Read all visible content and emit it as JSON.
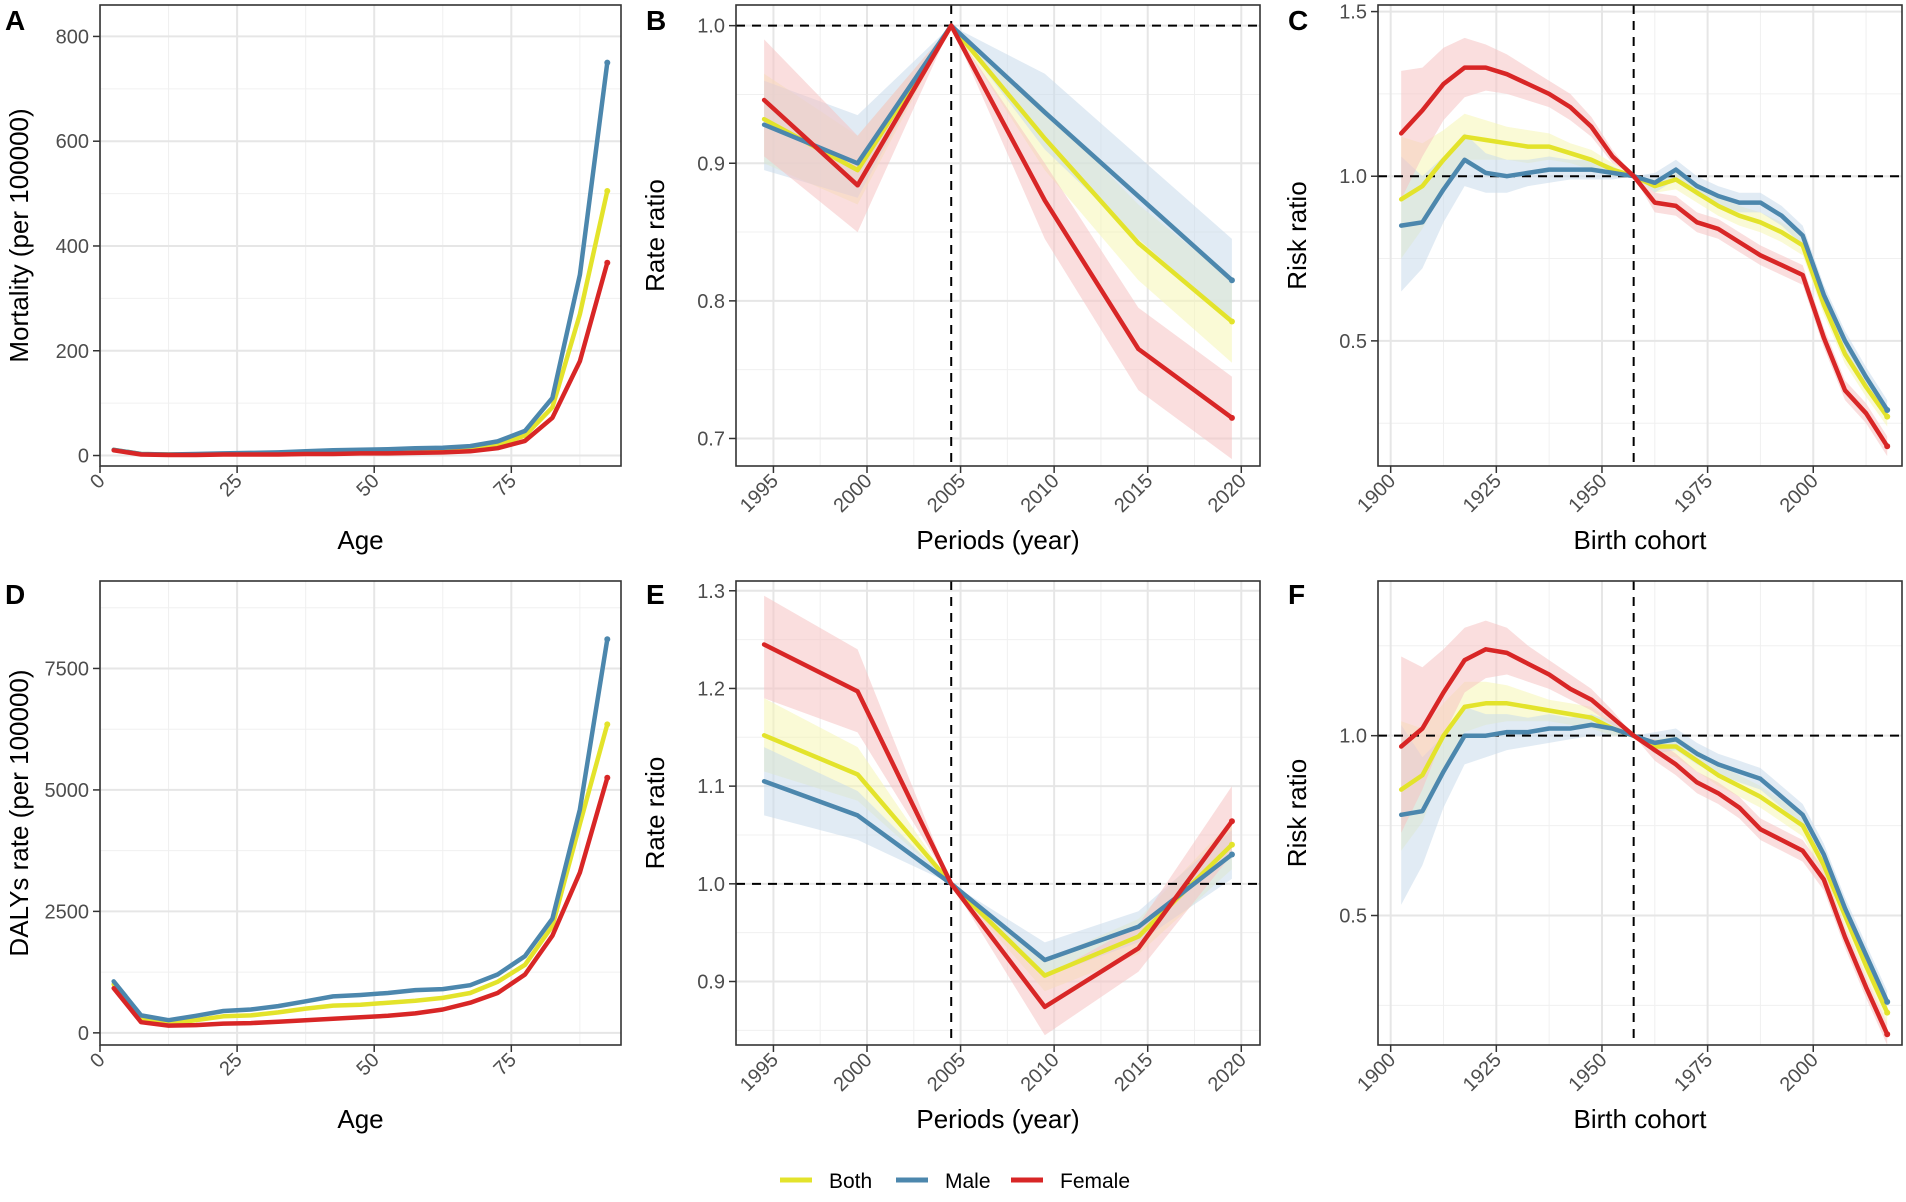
{
  "colors": {
    "Both": "#e3e32b",
    "Male": "#4c87ad",
    "Female": "#d82626",
    "Both_band": "#f6f6b4",
    "Male_band": "#c9daeb",
    "Female_band": "#f6c2c2"
  },
  "legend": {
    "items": [
      "Both",
      "Male",
      "Female"
    ]
  },
  "chart_data": [
    {
      "panel": "A",
      "type": "line",
      "xlabel": "Age",
      "ylabel": "Mortality (per 100000)",
      "xlim": [
        0,
        95
      ],
      "ylim": [
        -20,
        860
      ],
      "xticks": [
        0,
        25,
        50,
        75
      ],
      "yticks": [
        0,
        200,
        400,
        600,
        800
      ],
      "x": [
        2.5,
        7.5,
        12.5,
        17.5,
        22.5,
        27.5,
        32.5,
        37.5,
        42.5,
        47.5,
        52.5,
        57.5,
        62.5,
        67.5,
        72.5,
        77.5,
        82.5,
        87.5,
        92.5
      ],
      "series": [
        {
          "name": "Both",
          "values": [
            11,
            3,
            2,
            2,
            3,
            3,
            4,
            5,
            6,
            7,
            8,
            9,
            10,
            12,
            20,
            38,
            92,
            270,
            505
          ]
        },
        {
          "name": "Male",
          "values": [
            11,
            3,
            2,
            3,
            4,
            5,
            6,
            8,
            10,
            11,
            12,
            14,
            15,
            18,
            27,
            47,
            110,
            345,
            750
          ]
        },
        {
          "name": "Female",
          "values": [
            10,
            2,
            1,
            1,
            2,
            2,
            2,
            3,
            3,
            4,
            4,
            5,
            6,
            8,
            14,
            28,
            72,
            180,
            368
          ]
        }
      ]
    },
    {
      "panel": "B",
      "type": "line",
      "xlabel": "Periods (year)",
      "ylabel": "Rate ratio",
      "xlim": [
        1993,
        2021
      ],
      "ylim": [
        0.68,
        1.015
      ],
      "xticks": [
        1995,
        2000,
        2005,
        2010,
        2015,
        2020
      ],
      "yticks": [
        0.7,
        0.8,
        0.9,
        1.0
      ],
      "hline": 1.0,
      "vline": 2004.5,
      "x": [
        1994.5,
        1999.5,
        2004.5,
        2009.5,
        2014.5,
        2019.5
      ],
      "series": [
        {
          "name": "Both",
          "values": [
            0.932,
            0.895,
            1.0,
            0.918,
            0.842,
            0.785
          ],
          "lower": [
            0.9,
            0.87,
            1.0,
            0.895,
            0.815,
            0.755
          ],
          "upper": [
            0.965,
            0.92,
            1.0,
            0.94,
            0.87,
            0.815
          ]
        },
        {
          "name": "Male",
          "values": [
            0.928,
            0.9,
            1.0,
            0.937,
            0.876,
            0.815
          ],
          "lower": [
            0.895,
            0.875,
            1.0,
            0.91,
            0.845,
            0.785
          ],
          "upper": [
            0.96,
            0.935,
            1.0,
            0.965,
            0.905,
            0.845
          ]
        },
        {
          "name": "Female",
          "values": [
            0.946,
            0.884,
            1.0,
            0.873,
            0.765,
            0.715
          ],
          "lower": [
            0.905,
            0.85,
            1.0,
            0.845,
            0.735,
            0.685
          ],
          "upper": [
            0.99,
            0.92,
            1.0,
            0.9,
            0.795,
            0.745
          ]
        }
      ]
    },
    {
      "panel": "C",
      "type": "line",
      "xlabel": "Birth cohort",
      "ylabel": "Risk ratio",
      "xlim": [
        1897,
        2021
      ],
      "ylim": [
        0.12,
        1.52
      ],
      "xticks": [
        1900,
        1925,
        1950,
        1975,
        2000
      ],
      "yticks": [
        0.5,
        1.0,
        1.5
      ],
      "hline": 1.0,
      "vline": 1957.5,
      "x": [
        1902.5,
        1907.5,
        1912.5,
        1917.5,
        1922.5,
        1927.5,
        1932.5,
        1937.5,
        1942.5,
        1947.5,
        1952.5,
        1957.5,
        1962.5,
        1967.5,
        1972.5,
        1977.5,
        1982.5,
        1987.5,
        1992.5,
        1997.5,
        2002.5,
        2007.5,
        2012.5,
        2017.5
      ],
      "series": [
        {
          "name": "Both",
          "values": [
            0.93,
            0.97,
            1.05,
            1.12,
            1.11,
            1.1,
            1.09,
            1.09,
            1.07,
            1.05,
            1.02,
            1.0,
            0.97,
            0.99,
            0.95,
            0.91,
            0.88,
            0.86,
            0.83,
            0.79,
            0.61,
            0.46,
            0.36,
            0.27
          ],
          "lower": [
            0.75,
            0.84,
            0.96,
            1.05,
            1.05,
            1.05,
            1.04,
            1.05,
            1.04,
            1.02,
            1.0,
            1.0,
            0.95,
            0.96,
            0.92,
            0.88,
            0.85,
            0.83,
            0.8,
            0.76,
            0.58,
            0.43,
            0.33,
            0.24
          ],
          "upper": [
            1.12,
            1.1,
            1.14,
            1.19,
            1.17,
            1.15,
            1.14,
            1.13,
            1.1,
            1.08,
            1.04,
            1.0,
            0.99,
            1.02,
            0.98,
            0.94,
            0.91,
            0.89,
            0.86,
            0.82,
            0.64,
            0.49,
            0.39,
            0.3
          ]
        },
        {
          "name": "Male",
          "values": [
            0.85,
            0.86,
            0.96,
            1.05,
            1.01,
            1.0,
            1.01,
            1.02,
            1.02,
            1.02,
            1.01,
            1.0,
            0.98,
            1.02,
            0.97,
            0.94,
            0.92,
            0.92,
            0.88,
            0.82,
            0.64,
            0.5,
            0.39,
            0.29
          ],
          "lower": [
            0.65,
            0.72,
            0.86,
            0.97,
            0.95,
            0.95,
            0.97,
            0.98,
            0.99,
            0.99,
            0.99,
            1.0,
            0.95,
            0.99,
            0.94,
            0.91,
            0.89,
            0.89,
            0.85,
            0.79,
            0.61,
            0.47,
            0.36,
            0.26
          ],
          "upper": [
            1.06,
            1.0,
            1.06,
            1.13,
            1.07,
            1.05,
            1.05,
            1.06,
            1.05,
            1.05,
            1.03,
            1.0,
            1.01,
            1.05,
            1.0,
            0.97,
            0.95,
            0.95,
            0.91,
            0.85,
            0.67,
            0.53,
            0.42,
            0.32
          ]
        },
        {
          "name": "Female",
          "values": [
            1.13,
            1.2,
            1.28,
            1.33,
            1.33,
            1.31,
            1.28,
            1.25,
            1.21,
            1.15,
            1.06,
            1.0,
            0.92,
            0.91,
            0.86,
            0.84,
            0.8,
            0.76,
            0.73,
            0.7,
            0.51,
            0.35,
            0.28,
            0.18
          ],
          "lower": [
            0.93,
            1.06,
            1.17,
            1.24,
            1.26,
            1.25,
            1.23,
            1.21,
            1.17,
            1.12,
            1.04,
            1.0,
            0.89,
            0.88,
            0.83,
            0.81,
            0.77,
            0.73,
            0.7,
            0.67,
            0.48,
            0.32,
            0.25,
            0.15
          ],
          "upper": [
            1.32,
            1.33,
            1.39,
            1.42,
            1.4,
            1.37,
            1.33,
            1.29,
            1.25,
            1.18,
            1.08,
            1.0,
            0.95,
            0.94,
            0.89,
            0.87,
            0.83,
            0.79,
            0.76,
            0.73,
            0.54,
            0.38,
            0.31,
            0.21
          ]
        }
      ]
    },
    {
      "panel": "D",
      "type": "line",
      "xlabel": "Age",
      "ylabel": "DALYs rate (per 100000)",
      "xlim": [
        0,
        95
      ],
      "ylim": [
        -250,
        9300
      ],
      "xticks": [
        0,
        25,
        50,
        75
      ],
      "yticks": [
        0,
        2500,
        5000,
        7500
      ],
      "x": [
        2.5,
        7.5,
        12.5,
        17.5,
        22.5,
        27.5,
        32.5,
        37.5,
        42.5,
        47.5,
        52.5,
        57.5,
        62.5,
        67.5,
        72.5,
        77.5,
        82.5,
        87.5,
        92.5
      ],
      "series": [
        {
          "name": "Both",
          "values": [
            1000,
            300,
            200,
            260,
            340,
            360,
            420,
            500,
            560,
            580,
            620,
            660,
            720,
            820,
            1050,
            1400,
            2200,
            4300,
            6350
          ]
        },
        {
          "name": "Male",
          "values": [
            1060,
            360,
            260,
            350,
            450,
            480,
            550,
            650,
            750,
            780,
            820,
            880,
            900,
            980,
            1200,
            1580,
            2350,
            4600,
            8100
          ]
        },
        {
          "name": "Female",
          "values": [
            920,
            220,
            150,
            160,
            190,
            200,
            230,
            260,
            290,
            320,
            350,
            400,
            480,
            620,
            820,
            1200,
            2000,
            3300,
            5250
          ]
        }
      ]
    },
    {
      "panel": "E",
      "type": "line",
      "xlabel": "Periods (year)",
      "ylabel": "Rate ratio",
      "xlim": [
        1993,
        2021
      ],
      "ylim": [
        0.835,
        1.31
      ],
      "xticks": [
        1995,
        2000,
        2005,
        2010,
        2015,
        2020
      ],
      "yticks": [
        0.9,
        1.0,
        1.1,
        1.2,
        1.3
      ],
      "hline": 1.0,
      "vline": 2004.5,
      "x": [
        1994.5,
        1999.5,
        2004.5,
        2009.5,
        2014.5,
        2019.5
      ],
      "series": [
        {
          "name": "Both",
          "values": [
            1.152,
            1.112,
            1.0,
            0.906,
            0.946,
            1.04
          ],
          "lower": [
            1.115,
            1.085,
            1.0,
            0.89,
            0.928,
            1.015
          ],
          "upper": [
            1.19,
            1.14,
            1.0,
            0.922,
            0.964,
            1.065
          ]
        },
        {
          "name": "Male",
          "values": [
            1.105,
            1.07,
            1.0,
            0.922,
            0.956,
            1.03
          ],
          "lower": [
            1.07,
            1.045,
            1.0,
            0.905,
            0.94,
            1.005
          ],
          "upper": [
            1.14,
            1.095,
            1.0,
            0.94,
            0.972,
            1.055
          ]
        },
        {
          "name": "Female",
          "values": [
            1.245,
            1.197,
            1.0,
            0.874,
            0.934,
            1.064
          ],
          "lower": [
            1.19,
            1.155,
            1.0,
            0.845,
            0.91,
            1.03
          ],
          "upper": [
            1.295,
            1.24,
            1.0,
            0.905,
            0.958,
            1.1
          ]
        }
      ]
    },
    {
      "panel": "F",
      "type": "line",
      "xlabel": "Birth cohort",
      "ylabel": "Risk ratio",
      "xlim": [
        1897,
        2021
      ],
      "ylim": [
        0.14,
        1.43
      ],
      "xticks": [
        1900,
        1925,
        1950,
        1975,
        2000
      ],
      "yticks": [
        0.5,
        1.0
      ],
      "hline": 1.0,
      "vline": 1957.5,
      "x": [
        1902.5,
        1907.5,
        1912.5,
        1917.5,
        1922.5,
        1927.5,
        1932.5,
        1937.5,
        1942.5,
        1947.5,
        1952.5,
        1957.5,
        1962.5,
        1967.5,
        1972.5,
        1977.5,
        1982.5,
        1987.5,
        1992.5,
        1997.5,
        2002.5,
        2007.5,
        2012.5,
        2017.5
      ],
      "series": [
        {
          "name": "Both",
          "values": [
            0.85,
            0.89,
            1.0,
            1.08,
            1.09,
            1.09,
            1.08,
            1.07,
            1.06,
            1.05,
            1.02,
            1.0,
            0.97,
            0.97,
            0.93,
            0.89,
            0.86,
            0.83,
            0.79,
            0.75,
            0.64,
            0.5,
            0.36,
            0.23
          ],
          "lower": [
            0.68,
            0.76,
            0.91,
            1.01,
            1.03,
            1.04,
            1.04,
            1.04,
            1.03,
            1.02,
            1.0,
            1.0,
            0.95,
            0.94,
            0.9,
            0.86,
            0.83,
            0.8,
            0.76,
            0.72,
            0.61,
            0.47,
            0.33,
            0.2
          ],
          "upper": [
            1.04,
            1.02,
            1.09,
            1.15,
            1.15,
            1.14,
            1.12,
            1.1,
            1.09,
            1.08,
            1.04,
            1.0,
            0.99,
            1.0,
            0.96,
            0.92,
            0.89,
            0.86,
            0.82,
            0.78,
            0.67,
            0.53,
            0.39,
            0.26
          ]
        },
        {
          "name": "Male",
          "values": [
            0.78,
            0.79,
            0.9,
            1.0,
            1.0,
            1.01,
            1.01,
            1.02,
            1.02,
            1.03,
            1.02,
            1.0,
            0.98,
            0.99,
            0.95,
            0.92,
            0.9,
            0.88,
            0.83,
            0.78,
            0.67,
            0.52,
            0.39,
            0.26
          ],
          "lower": [
            0.53,
            0.64,
            0.8,
            0.92,
            0.94,
            0.96,
            0.97,
            0.98,
            0.99,
            1.0,
            1.0,
            1.0,
            0.95,
            0.96,
            0.92,
            0.89,
            0.87,
            0.85,
            0.8,
            0.75,
            0.64,
            0.49,
            0.36,
            0.23
          ],
          "upper": [
            1.03,
            0.94,
            1.0,
            1.08,
            1.06,
            1.06,
            1.05,
            1.06,
            1.05,
            1.06,
            1.04,
            1.0,
            1.01,
            1.02,
            0.98,
            0.95,
            0.93,
            0.91,
            0.86,
            0.81,
            0.7,
            0.55,
            0.42,
            0.29
          ]
        },
        {
          "name": "Female",
          "values": [
            0.97,
            1.02,
            1.12,
            1.21,
            1.24,
            1.23,
            1.2,
            1.17,
            1.13,
            1.1,
            1.05,
            1.0,
            0.96,
            0.92,
            0.87,
            0.84,
            0.8,
            0.74,
            0.71,
            0.68,
            0.6,
            0.44,
            0.3,
            0.17
          ],
          "lower": [
            0.73,
            0.85,
            1.0,
            1.12,
            1.16,
            1.17,
            1.15,
            1.13,
            1.1,
            1.07,
            1.03,
            1.0,
            0.93,
            0.89,
            0.84,
            0.81,
            0.77,
            0.71,
            0.68,
            0.65,
            0.57,
            0.41,
            0.27,
            0.14
          ],
          "upper": [
            1.22,
            1.19,
            1.24,
            1.3,
            1.32,
            1.3,
            1.25,
            1.21,
            1.17,
            1.13,
            1.07,
            1.0,
            0.99,
            0.95,
            0.9,
            0.87,
            0.83,
            0.77,
            0.74,
            0.71,
            0.63,
            0.47,
            0.33,
            0.2
          ]
        }
      ]
    }
  ]
}
